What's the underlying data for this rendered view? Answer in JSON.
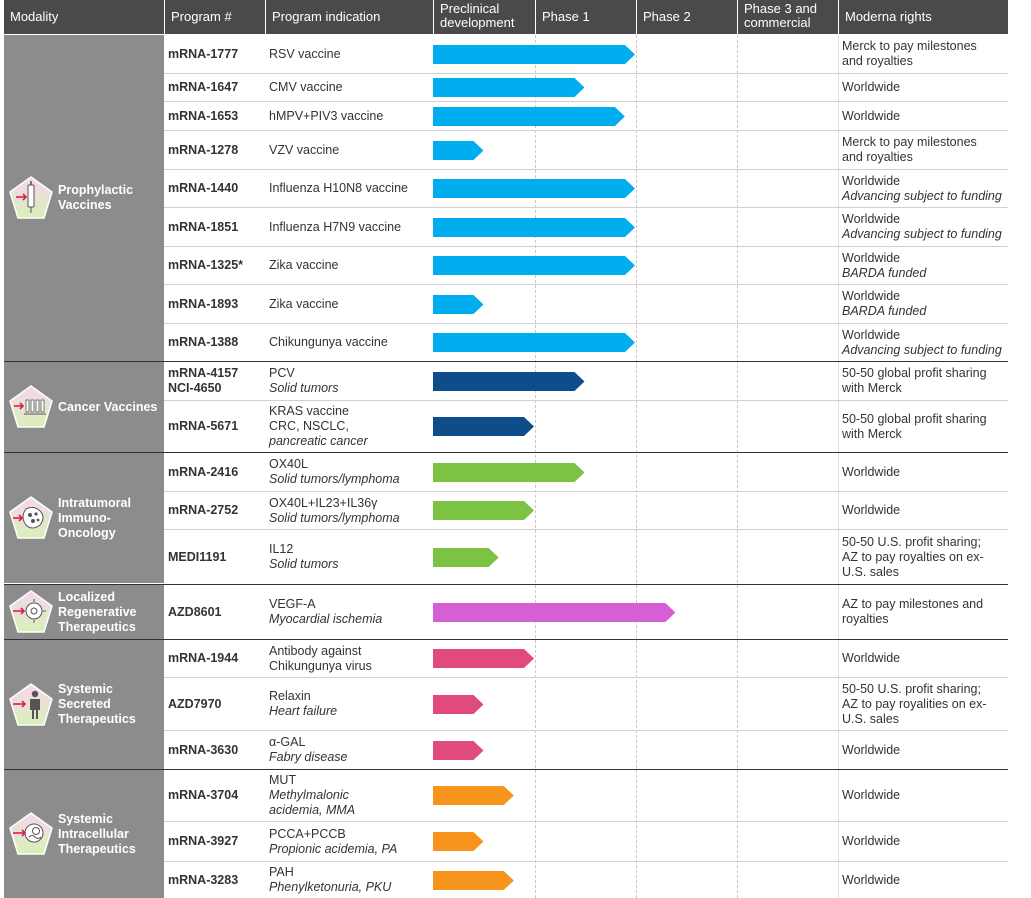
{
  "headers": {
    "modality": "Modality",
    "program": "Program #",
    "indication": "Program indication",
    "preclinical": [
      "Preclinical",
      "development"
    ],
    "phase1": "Phase 1",
    "phase2": "Phase 2",
    "phase3": [
      "Phase 3 and",
      "commercial"
    ],
    "rights": "Moderna rights"
  },
  "modality_groups": [
    {
      "label": "Prophylactic\nVaccines",
      "icon": "syringe-icon"
    },
    {
      "label": "Cancer Vaccines",
      "icon": "cancer-vaccine-icon"
    },
    {
      "label": "Intratumoral\nImmuno-\nOncology",
      "icon": "tumor-cell-icon"
    },
    {
      "label": "Localized\nRegenerative\nTherapeutics",
      "icon": "regenerative-cell-icon"
    },
    {
      "label": "Systemic\nSecreted\nTherapeutics",
      "icon": "person-icon"
    },
    {
      "label": "Systemic\nIntracellular\nTherapeutics",
      "icon": "intracellular-cell-icon"
    }
  ],
  "colors": {
    "header_bg": "#4a4a4a",
    "modality_bg": "#8c8c8c",
    "Prophylactic Vaccines": "#00aeef",
    "Cancer Vaccines": "#0e4d8a",
    "Intratumoral Immuno-Oncology": "#7cc243",
    "Localized Regenerative Therapeutics": "#d65fd6",
    "Systemic Secreted Therapeutics": "#e04a7d",
    "Systemic Intracellular Therapeutics": "#f7941d"
  },
  "chart_data": {
    "type": "table",
    "stages": [
      "Preclinical development",
      "Phase 1",
      "Phase 2",
      "Phase 3 and commercial"
    ],
    "columns": [
      "Modality",
      "Program #",
      "Program indication",
      "Stage progress",
      "Moderna rights"
    ],
    "rows": [
      {
        "group": 0,
        "program": [
          "mRNA-1777"
        ],
        "indication": [
          {
            "t": "RSV vaccine"
          }
        ],
        "progress": 2.0,
        "rights": [
          {
            "t": "Merck to pay milestones"
          },
          {
            "t": "and royalties"
          }
        ]
      },
      {
        "group": 0,
        "program": [
          "mRNA-1647"
        ],
        "indication": [
          {
            "t": "CMV vaccine"
          }
        ],
        "progress": 1.5,
        "rights": [
          {
            "t": "Worldwide"
          }
        ]
      },
      {
        "group": 0,
        "program": [
          "mRNA-1653"
        ],
        "indication": [
          {
            "t": "hMPV+PIV3 vaccine"
          }
        ],
        "progress": 1.9,
        "rights": [
          {
            "t": "Worldwide"
          }
        ]
      },
      {
        "group": 0,
        "program": [
          "mRNA-1278"
        ],
        "indication": [
          {
            "t": "VZV vaccine"
          }
        ],
        "progress": 0.5,
        "rights": [
          {
            "t": "Merck to pay milestones"
          },
          {
            "t": "and royalties"
          }
        ]
      },
      {
        "group": 0,
        "program": [
          "mRNA-1440"
        ],
        "indication": [
          {
            "t": "Influenza H10N8 vaccine"
          }
        ],
        "progress": 2.0,
        "rights": [
          {
            "t": "Worldwide"
          },
          {
            "t": "Advancing subject to funding",
            "i": true
          }
        ]
      },
      {
        "group": 0,
        "program": [
          "mRNA-1851"
        ],
        "indication": [
          {
            "t": "Influenza H7N9 vaccine"
          }
        ],
        "progress": 2.0,
        "rights": [
          {
            "t": "Worldwide"
          },
          {
            "t": "Advancing subject to funding",
            "i": true
          }
        ]
      },
      {
        "group": 0,
        "program": [
          "mRNA-1325*"
        ],
        "indication": [
          {
            "t": "Zika vaccine"
          }
        ],
        "progress": 2.0,
        "rights": [
          {
            "t": "Worldwide"
          },
          {
            "t": "BARDA funded",
            "i": true
          }
        ]
      },
      {
        "group": 0,
        "program": [
          "mRNA-1893"
        ],
        "indication": [
          {
            "t": "Zika vaccine"
          }
        ],
        "progress": 0.5,
        "rights": [
          {
            "t": "Worldwide"
          },
          {
            "t": "BARDA funded",
            "i": true
          }
        ]
      },
      {
        "group": 0,
        "program": [
          "mRNA-1388"
        ],
        "indication": [
          {
            "t": "Chikungunya vaccine"
          }
        ],
        "progress": 2.0,
        "rights": [
          {
            "t": "Worldwide"
          },
          {
            "t": "Advancing subject to funding",
            "i": true
          }
        ]
      },
      {
        "group": 1,
        "program": [
          "mRNA-4157",
          "NCI-4650"
        ],
        "indication": [
          {
            "t": "PCV"
          },
          {
            "t": "Solid tumors",
            "i": true
          }
        ],
        "progress": 1.5,
        "rights": [
          {
            "t": "50-50 global profit sharing"
          },
          {
            "t": "with Merck"
          }
        ]
      },
      {
        "group": 1,
        "program": [
          "mRNA-5671"
        ],
        "indication": [
          {
            "t": "KRAS vaccine"
          },
          {
            "t": "CRC, NSCLC,"
          },
          {
            "t": "pancreatic cancer",
            "i": true
          }
        ],
        "progress": 1.0,
        "rights": [
          {
            "t": "50-50 global profit sharing"
          },
          {
            "t": "with Merck"
          }
        ]
      },
      {
        "group": 2,
        "program": [
          "mRNA-2416"
        ],
        "indication": [
          {
            "t": "OX40L"
          },
          {
            "t": "Solid tumors/lymphoma",
            "i": true
          }
        ],
        "progress": 1.5,
        "rights": [
          {
            "t": "Worldwide"
          }
        ]
      },
      {
        "group": 2,
        "program": [
          "mRNA-2752"
        ],
        "indication": [
          {
            "t": "OX40L+IL23+IL36γ"
          },
          {
            "t": "Solid tumors/lymphoma",
            "i": true
          }
        ],
        "progress": 1.0,
        "rights": [
          {
            "t": "Worldwide"
          }
        ]
      },
      {
        "group": 2,
        "program": [
          "MEDI1191"
        ],
        "indication": [
          {
            "t": "IL12"
          },
          {
            "t": "Solid tumors",
            "i": true
          }
        ],
        "progress": 0.65,
        "rights": [
          {
            "t": "50-50 U.S. profit sharing;"
          },
          {
            "t": "AZ to pay royalties on ex-"
          },
          {
            "t": "U.S. sales"
          }
        ]
      },
      {
        "group": 3,
        "program": [
          "AZD8601"
        ],
        "indication": [
          {
            "t": "VEGF-A"
          },
          {
            "t": "Myocardial ischemia",
            "i": true
          }
        ],
        "progress": 2.4,
        "rights": [
          {
            "t": "AZ to pay milestones and"
          },
          {
            "t": "royalties"
          }
        ]
      },
      {
        "group": 4,
        "program": [
          "mRNA-1944"
        ],
        "indication": [
          {
            "t": "Antibody against"
          },
          {
            "t": "Chikungunya virus"
          }
        ],
        "progress": 1.0,
        "rights": [
          {
            "t": "Worldwide"
          }
        ]
      },
      {
        "group": 4,
        "program": [
          "AZD7970"
        ],
        "indication": [
          {
            "t": "Relaxin"
          },
          {
            "t": "Heart failure",
            "i": true
          }
        ],
        "progress": 0.5,
        "rights": [
          {
            "t": "50-50 U.S. profit sharing;"
          },
          {
            "t": "AZ to pay royalities on ex-"
          },
          {
            "t": "U.S. sales"
          }
        ]
      },
      {
        "group": 4,
        "program": [
          "mRNA-3630"
        ],
        "indication": [
          {
            "t": "α-GAL"
          },
          {
            "t": "Fabry disease",
            "i": true
          }
        ],
        "progress": 0.5,
        "rights": [
          {
            "t": "Worldwide"
          }
        ]
      },
      {
        "group": 5,
        "program": [
          "mRNA-3704"
        ],
        "indication": [
          {
            "t": "MUT"
          },
          {
            "t": "Methylmalonic",
            "i": true
          },
          {
            "t": "acidemia, MMA",
            "i": true
          }
        ],
        "progress": 0.8,
        "rights": [
          {
            "t": "Worldwide"
          }
        ]
      },
      {
        "group": 5,
        "program": [
          "mRNA-3927"
        ],
        "indication": [
          {
            "t": "PCCA+PCCB"
          },
          {
            "t": "Propionic acidemia, PA",
            "i": true
          }
        ],
        "progress": 0.5,
        "rights": [
          {
            "t": "Worldwide"
          }
        ]
      },
      {
        "group": 5,
        "program": [
          "mRNA-3283"
        ],
        "indication": [
          {
            "t": "PAH"
          },
          {
            "t": "Phenylketonuria, PKU",
            "i": true
          }
        ],
        "progress": 0.8,
        "rights": [
          {
            "t": "Worldwide"
          }
        ]
      }
    ]
  }
}
